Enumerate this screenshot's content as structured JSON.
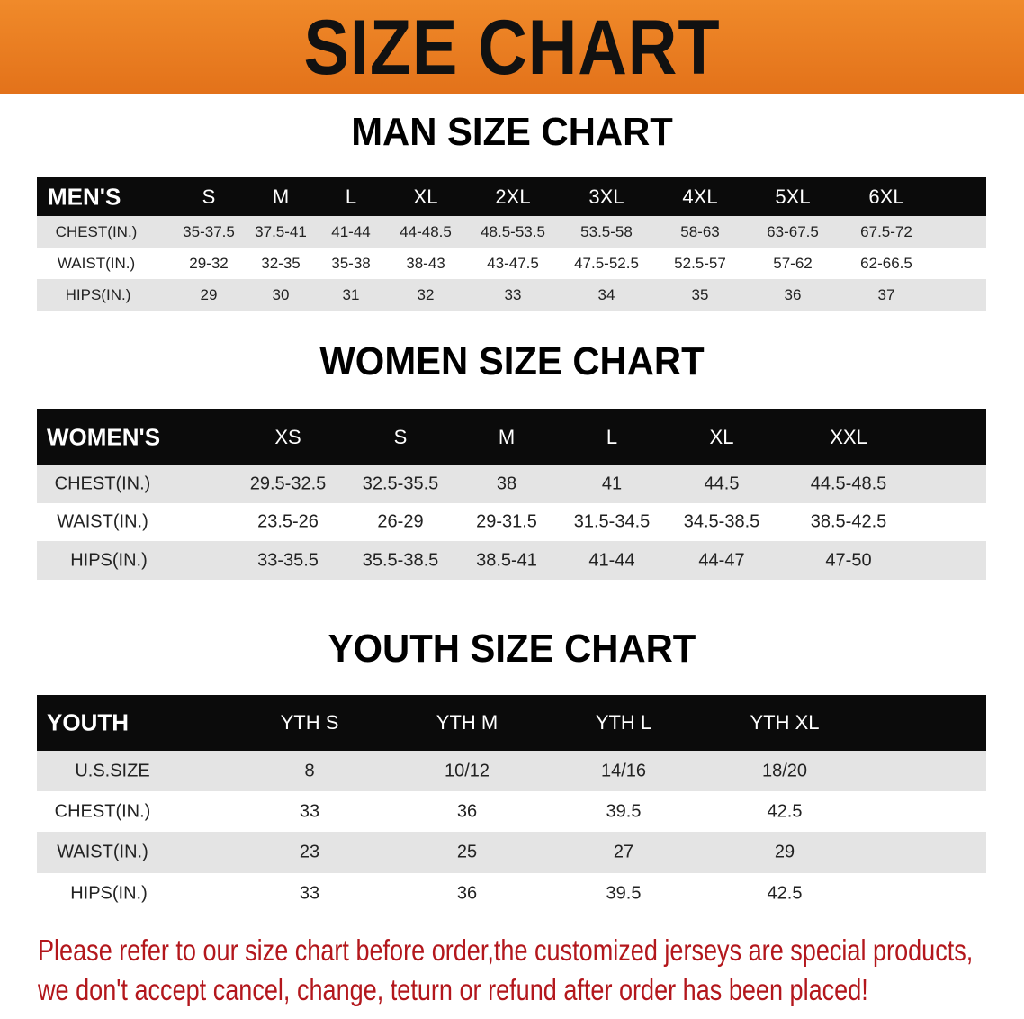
{
  "banner_title": "SIZE CHART",
  "colors": {
    "banner": "#ec7d22",
    "header_row": "#0b0b0b",
    "note_text": "#b3171c"
  },
  "men": {
    "title": "MAN SIZE CHART",
    "header": [
      "MEN'S",
      "S",
      "M",
      "L",
      "XL",
      "2XL",
      "3XL",
      "4XL",
      "5XL",
      "6XL"
    ],
    "rows": [
      [
        "CHEST(IN.)",
        "35-37.5",
        "37.5-41",
        "41-44",
        "44-48.5",
        "48.5-53.5",
        "53.5-58",
        "58-63",
        "63-67.5",
        "67.5-72"
      ],
      [
        "WAIST(IN.)",
        "29-32",
        "32-35",
        "35-38",
        "38-43",
        "43-47.5",
        "47.5-52.5",
        "52.5-57",
        "57-62",
        "62-66.5"
      ],
      [
        "HIPS(IN.)",
        "29",
        "30",
        "31",
        "32",
        "33",
        "34",
        "35",
        "36",
        "37"
      ]
    ]
  },
  "women": {
    "title": "WOMEN SIZE CHART",
    "header": [
      "WOMEN'S",
      "XS",
      "S",
      "M",
      "L",
      "XL",
      "XXL"
    ],
    "rows": [
      [
        "CHEST(IN.)",
        "29.5-32.5",
        "32.5-35.5",
        "38",
        "41",
        "44.5",
        "44.5-48.5"
      ],
      [
        "WAIST(IN.)",
        "23.5-26",
        "26-29",
        "29-31.5",
        "31.5-34.5",
        "34.5-38.5",
        "38.5-42.5"
      ],
      [
        "HIPS(IN.)",
        "33-35.5",
        "35.5-38.5",
        "38.5-41",
        "41-44",
        "44-47",
        "47-50"
      ]
    ]
  },
  "youth": {
    "title": "YOUTH SIZE CHART",
    "header": [
      "YOUTH",
      "YTH S",
      "YTH M",
      "YTH L",
      "YTH XL"
    ],
    "rows": [
      [
        "U.S.SIZE",
        "8",
        "10/12",
        "14/16",
        "18/20"
      ],
      [
        "CHEST(IN.)",
        "33",
        "36",
        "39.5",
        "42.5"
      ],
      [
        "WAIST(IN.)",
        "23",
        "25",
        "27",
        "29"
      ],
      [
        "HIPS(IN.)",
        "33",
        "36",
        "39.5",
        "42.5"
      ]
    ]
  },
  "note": {
    "line1": "Please refer to our size chart before order,the customized jerseys are special products,",
    "line2": "we don't accept cancel, change, teturn or refund after order has been placed!"
  }
}
